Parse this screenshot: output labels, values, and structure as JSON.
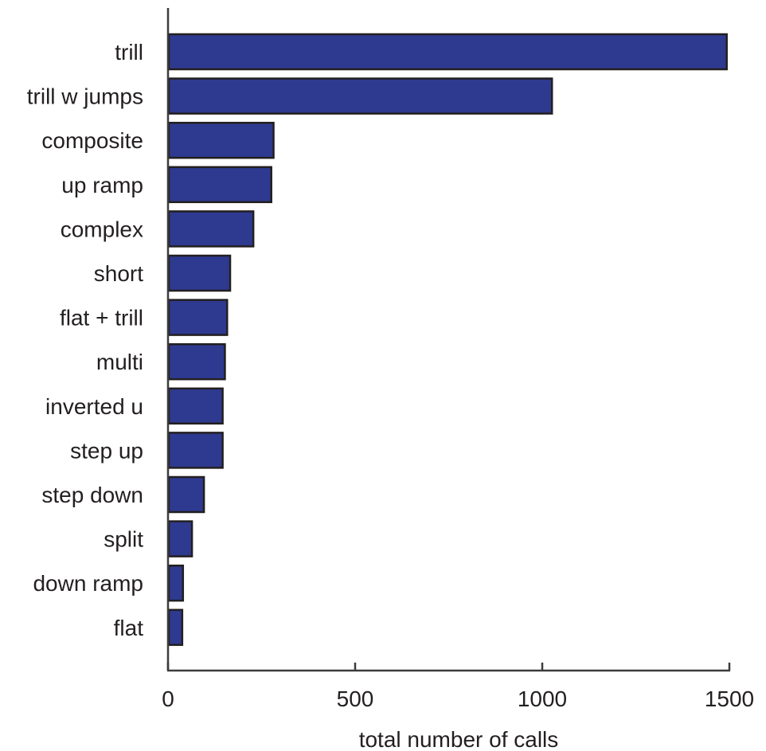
{
  "chart_data": {
    "type": "bar",
    "orientation": "horizontal",
    "categories": [
      "trill",
      "trill w jumps",
      "composite",
      "up ramp",
      "complex",
      "short",
      "flat + trill",
      "multi",
      "inverted u",
      "step up",
      "step down",
      "split",
      "down ramp",
      "flat"
    ],
    "values": [
      1493,
      1026,
      282,
      276,
      228,
      166,
      158,
      152,
      146,
      146,
      96,
      64,
      40,
      38
    ],
    "xlabel": "total number of calls",
    "ylabel": "",
    "xlim": [
      0,
      1500
    ],
    "xticks": [
      0,
      500,
      1000,
      1500
    ],
    "xtick_labels": [
      "0",
      "500",
      "1000",
      "1500"
    ],
    "bar_color": "#2e3a8f",
    "edge_color": "#231f20",
    "grid": false,
    "legend": "none"
  }
}
